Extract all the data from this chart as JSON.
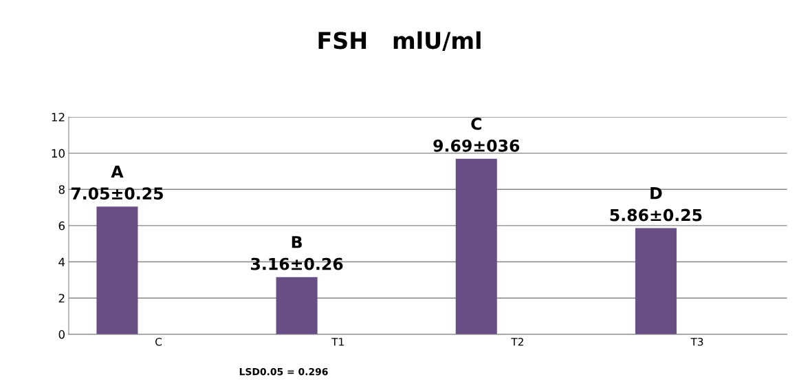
{
  "chart_data": {
    "type": "bar",
    "title": "FSH   mlU/ml",
    "categories": [
      "C",
      "T1",
      "T2",
      "T3"
    ],
    "series": [
      {
        "color": "#674f86",
        "values": [
          7.05,
          3.16,
          9.69,
          5.86
        ],
        "value_labels": [
          "A\n7.05±0.25",
          "B\n3.16±0.26",
          "C\n9.69±036",
          "D\n5.86±0.25"
        ]
      }
    ],
    "ylim": [
      0,
      12
    ],
    "yticks": [
      0,
      2,
      4,
      6,
      8,
      10,
      12
    ],
    "grid": "y",
    "legend": false,
    "annotations": [
      "LSD0.05 = 0.296"
    ]
  }
}
